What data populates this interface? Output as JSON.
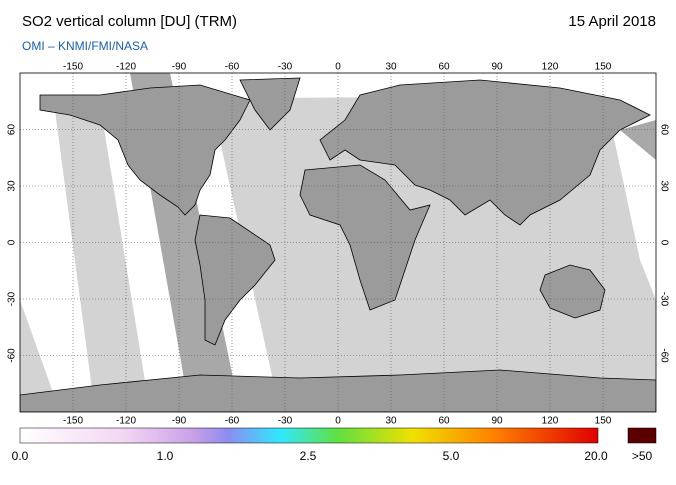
{
  "header": {
    "title": "SO2 vertical column [DU] (TRM)",
    "date": "15 April 2018",
    "source": "OMI  –  KNMI/FMI/NASA"
  },
  "map": {
    "lon_ticks": [
      -150,
      -120,
      -90,
      -60,
      -30,
      0,
      30,
      60,
      90,
      120,
      150
    ],
    "lat_ticks": [
      -60,
      -30,
      0,
      30,
      60
    ]
  },
  "colorbar": {
    "labels": [
      "0.0",
      "1.0",
      "2.5",
      "5.0",
      "20.0"
    ],
    "over_label": ">50"
  }
}
